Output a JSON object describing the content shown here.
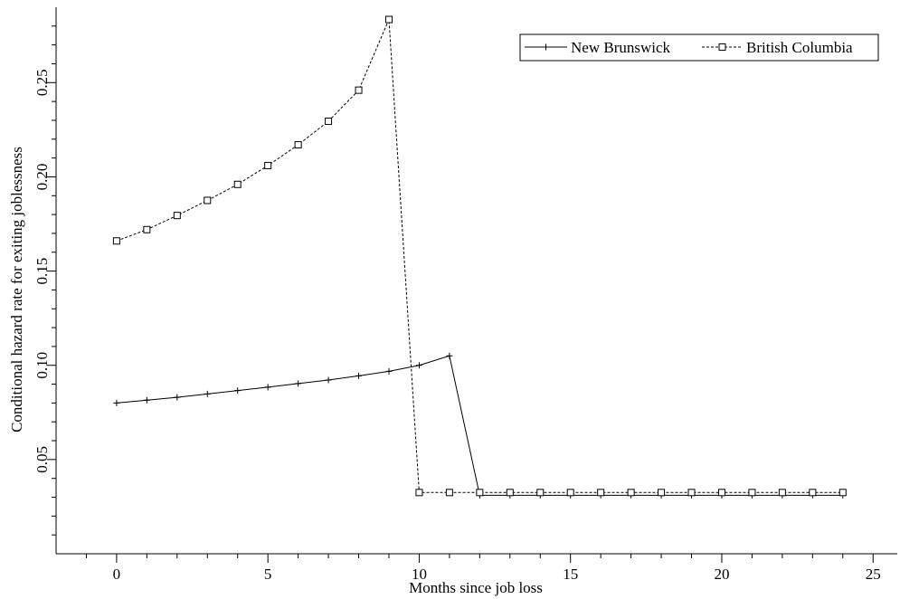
{
  "chart_data": {
    "type": "line",
    "xlabel": "Months since job loss",
    "ylabel": "Conditional hazard rate for exiting joblessness",
    "xlim": [
      -2,
      25.8
    ],
    "ylim": [
      0.0,
      0.29
    ],
    "x_ticks": [
      0,
      5,
      10,
      15,
      20,
      25
    ],
    "x_tick_labels": [
      "0",
      "5",
      "10",
      "15",
      "20",
      "25"
    ],
    "y_ticks": [
      0.05,
      0.1,
      0.15,
      0.2,
      0.25
    ],
    "y_tick_labels": [
      "0.05",
      "0.10",
      "0.15",
      "0.20",
      "0.25"
    ],
    "grid": false,
    "legend_position": "top-right",
    "series": [
      {
        "name": "New Brunswick",
        "marker": "plus",
        "line_style": "solid",
        "color": "#000000",
        "x": [
          0,
          1,
          2,
          3,
          4,
          5,
          6,
          7,
          8,
          9,
          10,
          11,
          12,
          13,
          14,
          15,
          16,
          17,
          18,
          19,
          20,
          21,
          22,
          23,
          24
        ],
        "y": [
          0.08,
          0.0815,
          0.083,
          0.0848,
          0.0866,
          0.0884,
          0.0903,
          0.0922,
          0.0944,
          0.0968,
          0.1,
          0.105,
          0.031,
          0.031,
          0.031,
          0.031,
          0.031,
          0.031,
          0.031,
          0.031,
          0.031,
          0.031,
          0.031,
          0.031,
          0.031
        ]
      },
      {
        "name": "British Columbia",
        "marker": "square",
        "line_style": "dashed",
        "color": "#000000",
        "x": [
          0,
          1,
          2,
          3,
          4,
          5,
          6,
          7,
          8,
          9,
          10,
          11,
          12,
          13,
          14,
          15,
          16,
          17,
          18,
          19,
          20,
          21,
          22,
          23,
          24
        ],
        "y": [
          0.166,
          0.172,
          0.1795,
          0.1875,
          0.196,
          0.206,
          0.217,
          0.2295,
          0.246,
          0.2835,
          0.0325,
          0.0325,
          0.0325,
          0.0325,
          0.0325,
          0.0325,
          0.0325,
          0.0325,
          0.0325,
          0.0325,
          0.0325,
          0.0325,
          0.0325,
          0.0325,
          0.0325
        ]
      }
    ]
  }
}
